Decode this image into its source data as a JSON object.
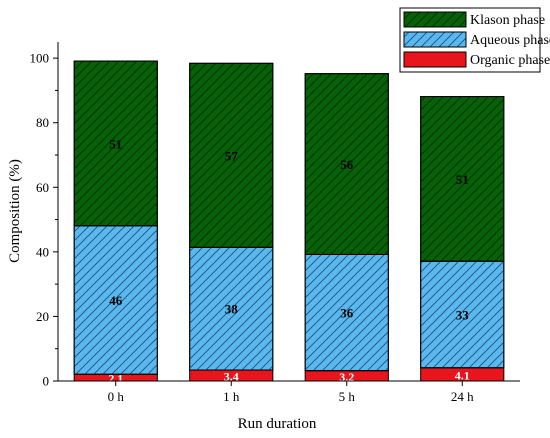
{
  "chart_data": {
    "type": "bar",
    "stacked": true,
    "categories": [
      "0 h",
      "1 h",
      "5 h",
      "24 h"
    ],
    "xlabel": "Run duration",
    "ylabel": "Composition (%)",
    "ylim": [
      0,
      105
    ],
    "yticks": [
      0,
      20,
      40,
      60,
      80,
      100
    ],
    "legend_position": "top-right",
    "series": [
      {
        "name": "Organic phase",
        "values": [
          2.1,
          3.4,
          3.2,
          4.1
        ],
        "labels": [
          "2.1",
          "3.4",
          "3.2",
          "4.1"
        ],
        "color": "#e8161c",
        "hatch": false
      },
      {
        "name": "Aqueous phase",
        "values": [
          46,
          38,
          36,
          33
        ],
        "labels": [
          "46",
          "38",
          "36",
          "33"
        ],
        "color": "#5ab8ee",
        "hatch": true
      },
      {
        "name": "Klason phase",
        "values": [
          51,
          57,
          56,
          51
        ],
        "labels": [
          "51",
          "57",
          "56",
          "51"
        ],
        "color": "#066108",
        "hatch": true
      }
    ],
    "legend_order": [
      "Klason phase",
      "Aqueous phase",
      "Organic phase"
    ]
  }
}
